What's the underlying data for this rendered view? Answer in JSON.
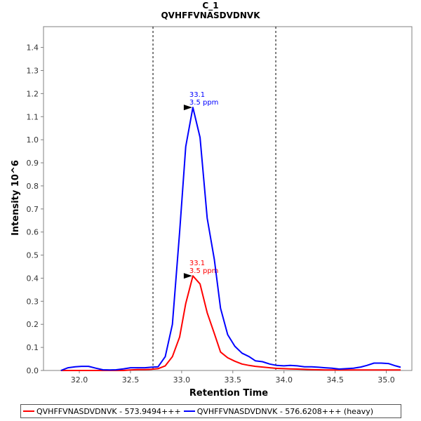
{
  "chart_data": {
    "type": "line",
    "title": "C_1",
    "subtitle": "QVHFFVNASDVDNVK",
    "xlabel": "Retention Time",
    "ylabel": "Intensity 10^6",
    "xlim": [
      31.65,
      35.25
    ],
    "ylim": [
      0,
      1.49
    ],
    "xticks": [
      "32.0",
      "32.5",
      "33.0",
      "33.5",
      "34.0",
      "34.5",
      "35.0"
    ],
    "yticks": [
      "0.0",
      "0.1",
      "0.2",
      "0.3",
      "0.4",
      "0.5",
      "0.6",
      "0.7",
      "0.8",
      "0.9",
      "1.0",
      "1.1",
      "1.2",
      "1.3",
      "1.4"
    ],
    "integration_bounds": [
      32.72,
      33.92
    ],
    "series": [
      {
        "name": "QVHFFVNASDVDNVK - 573.9494+++",
        "color": "#ff0000",
        "x": [
          31.82,
          31.89,
          31.96,
          32.02,
          32.09,
          32.16,
          32.23,
          32.3,
          32.36,
          32.43,
          32.5,
          32.57,
          32.64,
          32.7,
          32.77,
          32.84,
          32.91,
          32.98,
          33.04,
          33.11,
          33.18,
          33.25,
          33.32,
          33.38,
          33.45,
          33.52,
          33.59,
          33.66,
          33.72,
          33.79,
          33.86,
          33.93,
          34.0,
          34.06,
          34.13,
          34.2,
          34.27,
          34.34,
          34.4,
          34.47,
          34.54,
          34.61,
          34.68,
          34.75,
          34.81,
          34.88,
          34.95,
          35.02,
          35.09,
          35.14
        ],
        "values": [
          0.0,
          0.0,
          0.0,
          0.0,
          0.0,
          0.0,
          0.0,
          0.0,
          0.0,
          0.0,
          0.002,
          0.004,
          0.004,
          0.005,
          0.008,
          0.02,
          0.06,
          0.145,
          0.29,
          0.41,
          0.375,
          0.25,
          0.16,
          0.08,
          0.055,
          0.04,
          0.028,
          0.022,
          0.018,
          0.015,
          0.012,
          0.009,
          0.008,
          0.007,
          0.006,
          0.005,
          0.004,
          0.003,
          0.002,
          0.002,
          0.002,
          0.002,
          0.002,
          0.002,
          0.002,
          0.002,
          0.002,
          0.002,
          0.002,
          0.002
        ],
        "peak": {
          "x": 33.11,
          "y": 0.41,
          "rt_label": "33.1",
          "ppm_label": "3.5 ppm"
        }
      },
      {
        "name": "QVHFFVNASDVDNVK - 576.6208+++ (heavy)",
        "color": "#0000ff",
        "x": [
          31.82,
          31.89,
          31.96,
          32.02,
          32.09,
          32.16,
          32.23,
          32.3,
          32.36,
          32.43,
          32.5,
          32.57,
          32.64,
          32.7,
          32.77,
          32.84,
          32.91,
          32.98,
          33.04,
          33.11,
          33.18,
          33.25,
          33.32,
          33.38,
          33.45,
          33.52,
          33.59,
          33.66,
          33.72,
          33.79,
          33.86,
          33.93,
          34.0,
          34.06,
          34.13,
          34.2,
          34.27,
          34.34,
          34.4,
          34.47,
          34.54,
          34.61,
          34.68,
          34.75,
          34.81,
          34.88,
          34.95,
          35.02,
          35.09,
          35.14
        ],
        "values": [
          0.0,
          0.012,
          0.016,
          0.018,
          0.018,
          0.01,
          0.003,
          0.002,
          0.003,
          0.007,
          0.012,
          0.012,
          0.012,
          0.014,
          0.016,
          0.06,
          0.2,
          0.6,
          0.97,
          1.14,
          1.01,
          0.66,
          0.48,
          0.27,
          0.155,
          0.105,
          0.075,
          0.06,
          0.042,
          0.038,
          0.028,
          0.022,
          0.02,
          0.022,
          0.02,
          0.016,
          0.016,
          0.014,
          0.012,
          0.01,
          0.006,
          0.008,
          0.01,
          0.015,
          0.022,
          0.032,
          0.032,
          0.03,
          0.02,
          0.014
        ],
        "peak": {
          "x": 33.11,
          "y": 1.14,
          "rt_label": "33.1",
          "ppm_label": "3.5 ppm"
        }
      }
    ],
    "legend_position": "bottom"
  }
}
